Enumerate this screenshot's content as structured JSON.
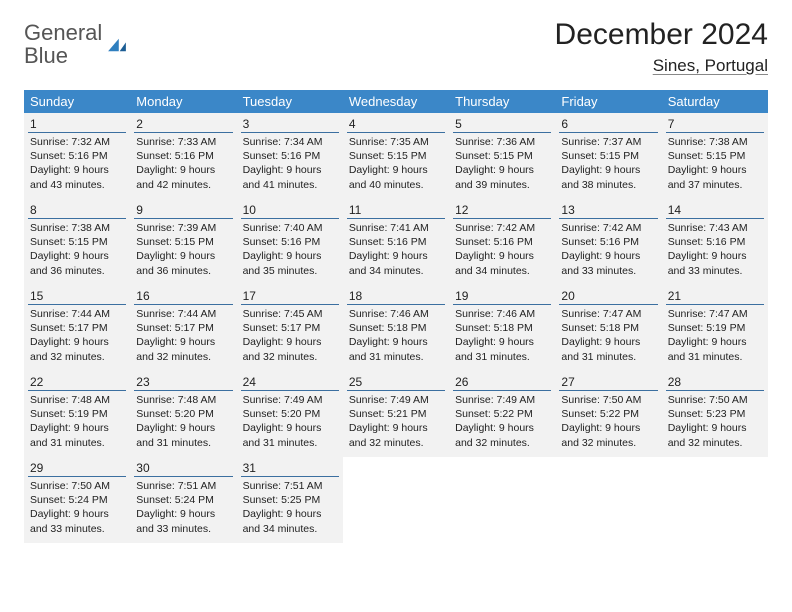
{
  "logo": {
    "text_gray": "General",
    "text_blue": "Blue"
  },
  "header": {
    "month_title": "December 2024",
    "location": "Sines, Portugal"
  },
  "colors": {
    "header_bg": "#3b87c8",
    "cell_bg": "#f2f2f2",
    "rule": "#3b6fa0",
    "logo_blue": "#2f7fbf"
  },
  "weekdays": [
    "Sunday",
    "Monday",
    "Tuesday",
    "Wednesday",
    "Thursday",
    "Friday",
    "Saturday"
  ],
  "grid": {
    "rows": 5,
    "cols": 7
  },
  "days": [
    {
      "n": 1,
      "sunrise": "7:32 AM",
      "sunset": "5:16 PM",
      "daylight": "9 hours and 43 minutes."
    },
    {
      "n": 2,
      "sunrise": "7:33 AM",
      "sunset": "5:16 PM",
      "daylight": "9 hours and 42 minutes."
    },
    {
      "n": 3,
      "sunrise": "7:34 AM",
      "sunset": "5:16 PM",
      "daylight": "9 hours and 41 minutes."
    },
    {
      "n": 4,
      "sunrise": "7:35 AM",
      "sunset": "5:15 PM",
      "daylight": "9 hours and 40 minutes."
    },
    {
      "n": 5,
      "sunrise": "7:36 AM",
      "sunset": "5:15 PM",
      "daylight": "9 hours and 39 minutes."
    },
    {
      "n": 6,
      "sunrise": "7:37 AM",
      "sunset": "5:15 PM",
      "daylight": "9 hours and 38 minutes."
    },
    {
      "n": 7,
      "sunrise": "7:38 AM",
      "sunset": "5:15 PM",
      "daylight": "9 hours and 37 minutes."
    },
    {
      "n": 8,
      "sunrise": "7:38 AM",
      "sunset": "5:15 PM",
      "daylight": "9 hours and 36 minutes."
    },
    {
      "n": 9,
      "sunrise": "7:39 AM",
      "sunset": "5:15 PM",
      "daylight": "9 hours and 36 minutes."
    },
    {
      "n": 10,
      "sunrise": "7:40 AM",
      "sunset": "5:16 PM",
      "daylight": "9 hours and 35 minutes."
    },
    {
      "n": 11,
      "sunrise": "7:41 AM",
      "sunset": "5:16 PM",
      "daylight": "9 hours and 34 minutes."
    },
    {
      "n": 12,
      "sunrise": "7:42 AM",
      "sunset": "5:16 PM",
      "daylight": "9 hours and 34 minutes."
    },
    {
      "n": 13,
      "sunrise": "7:42 AM",
      "sunset": "5:16 PM",
      "daylight": "9 hours and 33 minutes."
    },
    {
      "n": 14,
      "sunrise": "7:43 AM",
      "sunset": "5:16 PM",
      "daylight": "9 hours and 33 minutes."
    },
    {
      "n": 15,
      "sunrise": "7:44 AM",
      "sunset": "5:17 PM",
      "daylight": "9 hours and 32 minutes."
    },
    {
      "n": 16,
      "sunrise": "7:44 AM",
      "sunset": "5:17 PM",
      "daylight": "9 hours and 32 minutes."
    },
    {
      "n": 17,
      "sunrise": "7:45 AM",
      "sunset": "5:17 PM",
      "daylight": "9 hours and 32 minutes."
    },
    {
      "n": 18,
      "sunrise": "7:46 AM",
      "sunset": "5:18 PM",
      "daylight": "9 hours and 31 minutes."
    },
    {
      "n": 19,
      "sunrise": "7:46 AM",
      "sunset": "5:18 PM",
      "daylight": "9 hours and 31 minutes."
    },
    {
      "n": 20,
      "sunrise": "7:47 AM",
      "sunset": "5:18 PM",
      "daylight": "9 hours and 31 minutes."
    },
    {
      "n": 21,
      "sunrise": "7:47 AM",
      "sunset": "5:19 PM",
      "daylight": "9 hours and 31 minutes."
    },
    {
      "n": 22,
      "sunrise": "7:48 AM",
      "sunset": "5:19 PM",
      "daylight": "9 hours and 31 minutes."
    },
    {
      "n": 23,
      "sunrise": "7:48 AM",
      "sunset": "5:20 PM",
      "daylight": "9 hours and 31 minutes."
    },
    {
      "n": 24,
      "sunrise": "7:49 AM",
      "sunset": "5:20 PM",
      "daylight": "9 hours and 31 minutes."
    },
    {
      "n": 25,
      "sunrise": "7:49 AM",
      "sunset": "5:21 PM",
      "daylight": "9 hours and 32 minutes."
    },
    {
      "n": 26,
      "sunrise": "7:49 AM",
      "sunset": "5:22 PM",
      "daylight": "9 hours and 32 minutes."
    },
    {
      "n": 27,
      "sunrise": "7:50 AM",
      "sunset": "5:22 PM",
      "daylight": "9 hours and 32 minutes."
    },
    {
      "n": 28,
      "sunrise": "7:50 AM",
      "sunset": "5:23 PM",
      "daylight": "9 hours and 32 minutes."
    },
    {
      "n": 29,
      "sunrise": "7:50 AM",
      "sunset": "5:24 PM",
      "daylight": "9 hours and 33 minutes."
    },
    {
      "n": 30,
      "sunrise": "7:51 AM",
      "sunset": "5:24 PM",
      "daylight": "9 hours and 33 minutes."
    },
    {
      "n": 31,
      "sunrise": "7:51 AM",
      "sunset": "5:25 PM",
      "daylight": "9 hours and 34 minutes."
    }
  ],
  "labels": {
    "sunrise": "Sunrise:",
    "sunset": "Sunset:",
    "daylight": "Daylight:"
  }
}
